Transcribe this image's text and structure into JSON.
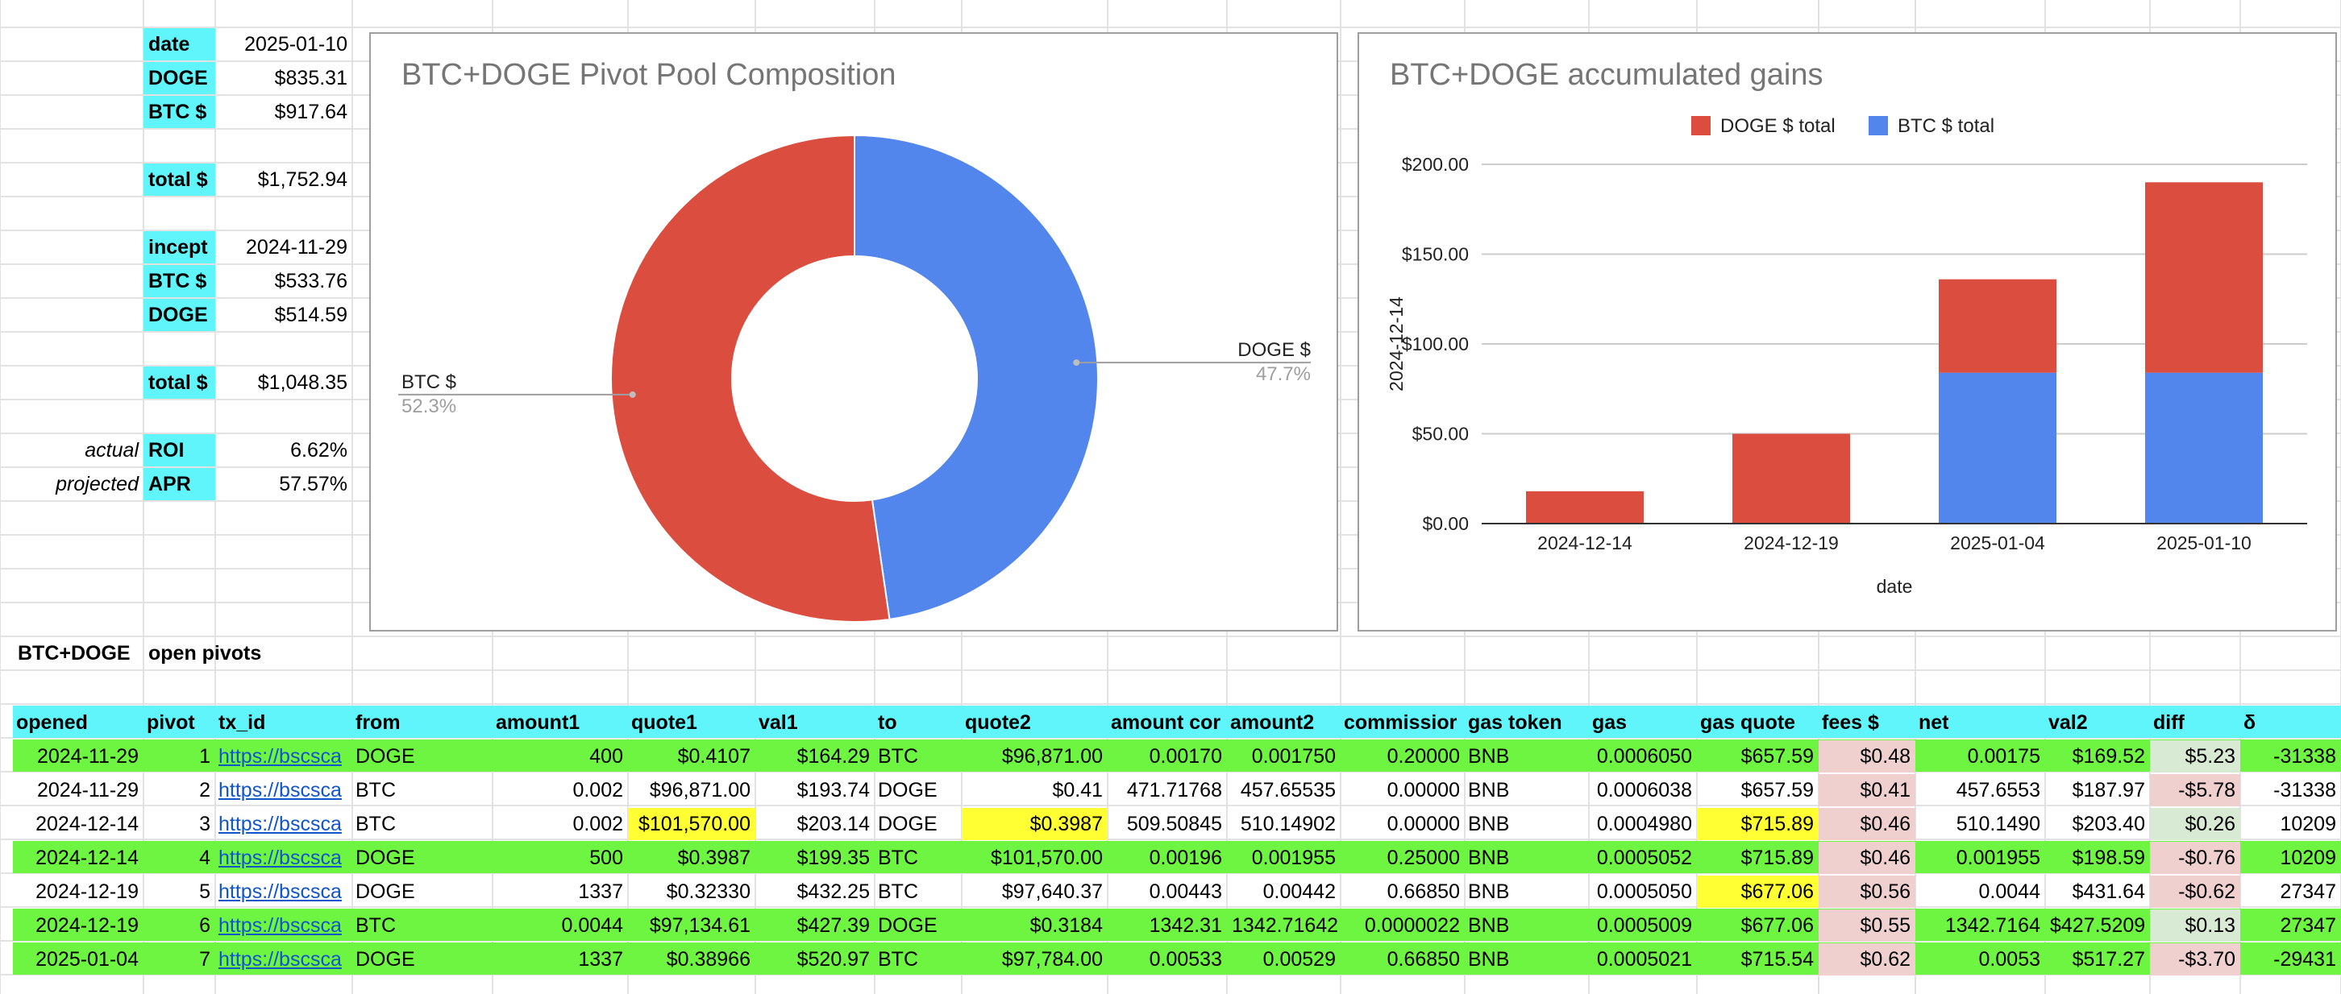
{
  "summary": {
    "rows": [
      {
        "left": "",
        "label": "date",
        "value": "2025-01-10"
      },
      {
        "left": "",
        "label": "DOGE",
        "value": "$835.31"
      },
      {
        "left": "",
        "label": "BTC $",
        "value": "$917.64"
      },
      {
        "left": "",
        "label": "total $",
        "value": "$1,752.94"
      },
      {
        "left": "",
        "label": "incept",
        "value": "2024-11-29"
      },
      {
        "left": "",
        "label": "BTC $",
        "value": "$533.76"
      },
      {
        "left": "",
        "label": "DOGE",
        "value": "$514.59"
      },
      {
        "left": "",
        "label": "total $",
        "value": "$1,048.35"
      },
      {
        "left": "actual",
        "label": "ROI",
        "value": "6.62%"
      },
      {
        "left": "projected",
        "label": "APR",
        "value": "57.57%"
      }
    ]
  },
  "pie_chart": {
    "title": "BTC+DOGE Pivot Pool Composition",
    "labels": [
      {
        "name": "BTC $",
        "pct": "52.3%"
      },
      {
        "name": "DOGE $",
        "pct": "47.7%"
      }
    ]
  },
  "bar_chart": {
    "title": "BTC+DOGE accumulated gains",
    "legend": [
      {
        "name": "DOGE $ total",
        "color": "#db4d3f"
      },
      {
        "name": "BTC $ total",
        "color": "#5286ec"
      }
    ],
    "yaxis_title": "2024-12-14",
    "xaxis_title": "date",
    "y_ticks": [
      "$0.00",
      "$50.00",
      "$100.00",
      "$150.00",
      "$200.00"
    ]
  },
  "chart_data": [
    {
      "type": "pie",
      "title": "BTC+DOGE Pivot Pool Composition",
      "donut": true,
      "slices": [
        {
          "label": "BTC $",
          "value": 52.3,
          "color": "#db4d3f"
        },
        {
          "label": "DOGE $",
          "value": 47.7,
          "color": "#5286ec"
        }
      ]
    },
    {
      "type": "bar",
      "stacked": true,
      "title": "BTC+DOGE accumulated gains",
      "categories": [
        "2024-12-14",
        "2024-12-19",
        "2025-01-04",
        "2025-01-10"
      ],
      "series": [
        {
          "name": "BTC $ total",
          "values": [
            0,
            0,
            84,
            84
          ],
          "color": "#5286ec"
        },
        {
          "name": "DOGE $ total",
          "values": [
            18,
            50,
            52,
            106
          ],
          "color": "#db4d3f"
        }
      ],
      "xlabel": "date",
      "ylabel": "2024-12-14",
      "ylim": [
        0,
        200
      ],
      "grid": true,
      "legend_position": "top"
    }
  ],
  "section": {
    "title1": "BTC+DOGE",
    "title2": "open pivots"
  },
  "table": {
    "headers": [
      "opened",
      "pivot",
      "tx_id",
      "from",
      "amount1",
      "quote1",
      "val1",
      "to",
      "quote2",
      "amount cor",
      "amount2",
      "commissior",
      "gas token",
      "gas",
      "gas quote",
      "fees $",
      "net",
      "val2",
      "diff",
      "δ"
    ],
    "rows": [
      [
        "2024-11-29",
        "1",
        "https://bscsca",
        "DOGE",
        "400",
        "$0.4107",
        "$164.29",
        "BTC",
        "$96,871.00",
        "0.00170",
        "0.001750",
        "0.20000",
        "BNB",
        "0.0006050",
        "$657.59",
        "$0.48",
        "0.00175",
        "$169.52",
        "$5.23",
        "-31338"
      ],
      [
        "2024-11-29",
        "2",
        "https://bscsca",
        "BTC",
        "0.002",
        "$96,871.00",
        "$193.74",
        "DOGE",
        "$0.41",
        "471.71768",
        "457.65535",
        "0.00000",
        "BNB",
        "0.0006038",
        "$657.59",
        "$0.41",
        "457.6553",
        "$187.97",
        "-$5.78",
        "-31338"
      ],
      [
        "2024-12-14",
        "3",
        "https://bscsca",
        "BTC",
        "0.002",
        "$101,570.00",
        "$203.14",
        "DOGE",
        "$0.3987",
        "509.50845",
        "510.14902",
        "0.00000",
        "BNB",
        "0.0004980",
        "$715.89",
        "$0.46",
        "510.1490",
        "$203.40",
        "$0.26",
        "10209"
      ],
      [
        "2024-12-14",
        "4",
        "https://bscsca",
        "DOGE",
        "500",
        "$0.3987",
        "$199.35",
        "BTC",
        "$101,570.00",
        "0.00196",
        "0.001955",
        "0.25000",
        "BNB",
        "0.0005052",
        "$715.89",
        "$0.46",
        "0.001955",
        "$198.59",
        "-$0.76",
        "10209"
      ],
      [
        "2024-12-19",
        "5",
        "https://bscsca",
        "DOGE",
        "1337",
        "$0.32330",
        "$432.25",
        "BTC",
        "$97,640.37",
        "0.00443",
        "0.00442",
        "0.66850",
        "BNB",
        "0.0005050",
        "$677.06",
        "$0.56",
        "0.0044",
        "$431.64",
        "-$0.62",
        "27347"
      ],
      [
        "2024-12-19",
        "6",
        "https://bscsca",
        "BTC",
        "0.0044",
        "$97,134.61",
        "$427.39",
        "DOGE",
        "$0.3184",
        "1342.31",
        "1342.71642",
        "0.0000022",
        "BNB",
        "0.0005009",
        "$677.06",
        "$0.55",
        "1342.7164",
        "$427.5209",
        "$0.13",
        "27347"
      ],
      [
        "2025-01-04",
        "7",
        "https://bscsca",
        "DOGE",
        "1337",
        "$0.38966",
        "$520.97",
        "BTC",
        "$97,784.00",
        "0.00533",
        "0.00529",
        "0.66850",
        "BNB",
        "0.0005021",
        "$715.54",
        "$0.62",
        "0.0053",
        "$517.27",
        "-$3.70",
        "-29431"
      ]
    ],
    "colors": {
      "header": "#5ff5fa",
      "green": "#6ef542",
      "yellow": "#ffff33",
      "pink": "#f0cfcf",
      "lightgreen": "#d8ead3"
    }
  }
}
